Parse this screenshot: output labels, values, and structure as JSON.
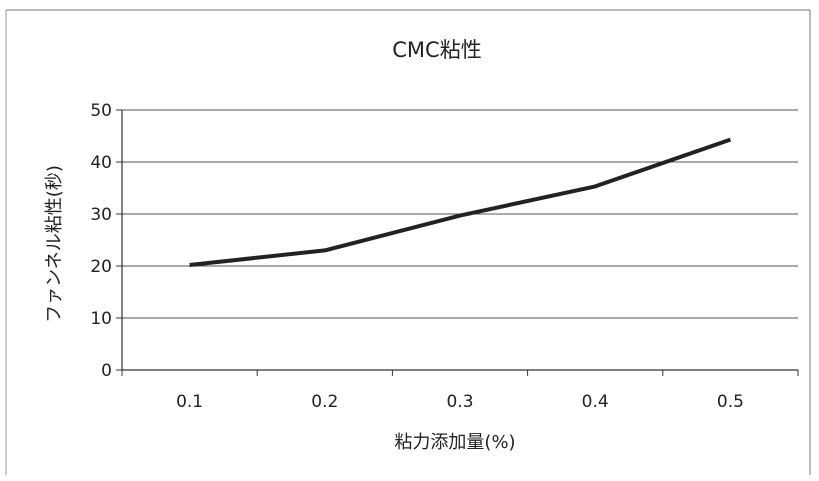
{
  "chart_data": {
    "type": "line",
    "title": "CMC粘性",
    "xlabel": "粘力添加量(%)",
    "ylabel": "ファンネル粘性(秒)",
    "categories": [
      "0.1",
      "0.2",
      "0.3",
      "0.4",
      "0.5"
    ],
    "series": [
      {
        "values": [
          20.2,
          23.0,
          29.7,
          35.3,
          44.3
        ],
        "color": "#222222"
      }
    ],
    "ylim": [
      0,
      50
    ],
    "yticks": [
      0,
      10,
      20,
      30,
      40,
      50
    ],
    "grid": true,
    "legend": "none"
  }
}
